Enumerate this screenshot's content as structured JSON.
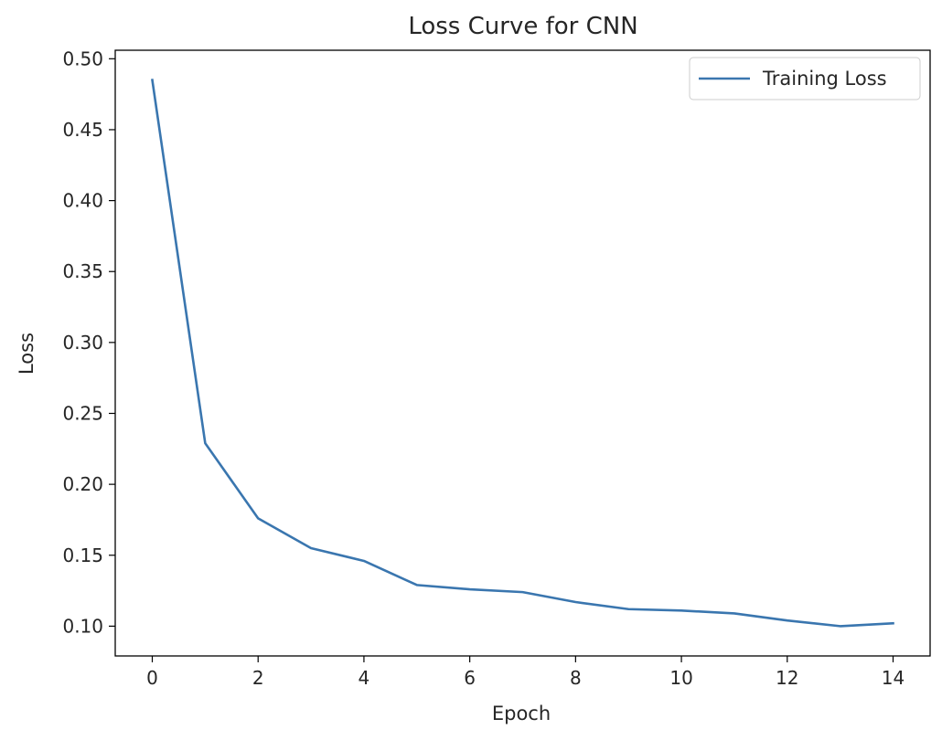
{
  "chart_data": {
    "type": "line",
    "title": "Loss Curve for CNN",
    "xlabel": "Epoch",
    "ylabel": "Loss",
    "xlim": [
      -0.7,
      14.7
    ],
    "ylim": [
      0.079,
      0.506
    ],
    "xticks": [
      0,
      2,
      4,
      6,
      8,
      10,
      12,
      14
    ],
    "yticks": [
      0.1,
      0.15,
      0.2,
      0.25,
      0.3,
      0.35,
      0.4,
      0.45,
      0.5
    ],
    "ytick_labels": [
      "0.10",
      "0.15",
      "0.20",
      "0.25",
      "0.30",
      "0.35",
      "0.40",
      "0.45",
      "0.50"
    ],
    "grid": false,
    "legend": {
      "position": "top-right"
    },
    "series": [
      {
        "name": "Training Loss",
        "color": "#3a76af",
        "x": [
          0,
          1,
          2,
          3,
          4,
          5,
          6,
          7,
          8,
          9,
          10,
          11,
          12,
          13,
          14
        ],
        "y": [
          0.485,
          0.229,
          0.176,
          0.155,
          0.146,
          0.129,
          0.126,
          0.124,
          0.117,
          0.112,
          0.111,
          0.109,
          0.104,
          0.1,
          0.102
        ]
      }
    ]
  }
}
